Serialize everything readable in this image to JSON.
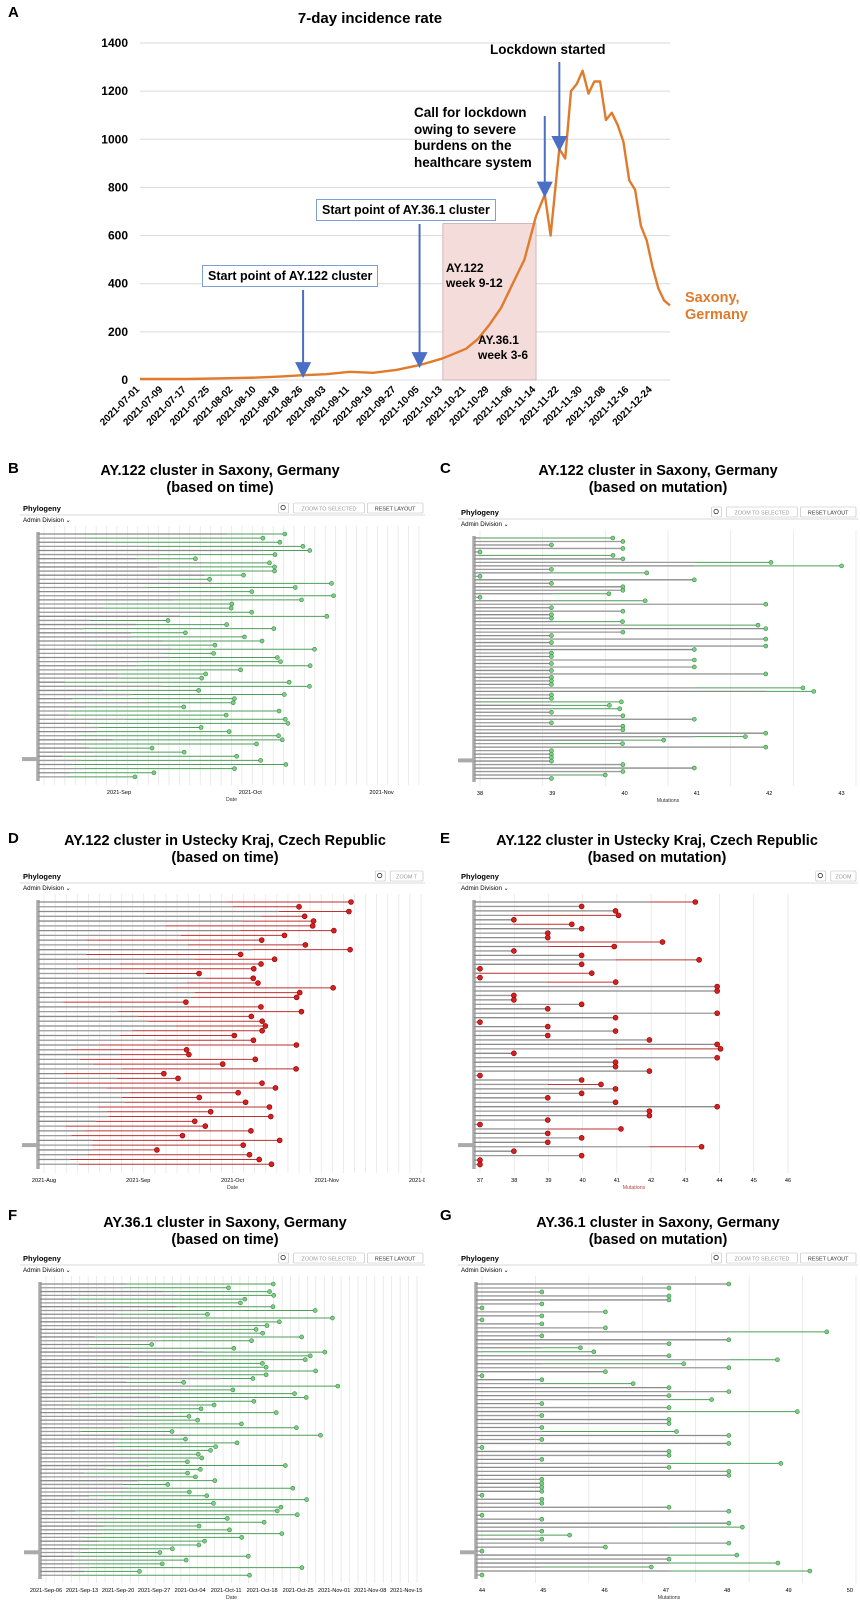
{
  "panel_a": {
    "letter": "A",
    "chart_data": {
      "type": "line",
      "title": "7-day incidence rate",
      "ylim": [
        0,
        1400
      ],
      "yticks": [
        0,
        200,
        400,
        600,
        800,
        1000,
        1200,
        1400
      ],
      "xtick_labels": [
        "2021-07-01",
        "2021-07-09",
        "2021-07-17",
        "2021-07-25",
        "2021-08-02",
        "2021-08-10",
        "2021-08-18",
        "2021-08-26",
        "2021-09-03",
        "2021-09-11",
        "2021-09-19",
        "2021-09-27",
        "2021-10-05",
        "2021-10-13",
        "2021-10-21",
        "2021-10-29",
        "2021-11-06",
        "2021-11-14",
        "2021-11-22",
        "2021-11-30",
        "2021-12-08",
        "2021-12-16",
        "2021-12-24"
      ],
      "grid": true,
      "series": [
        {
          "name": "Saxony, Germany",
          "color": "#e07b2c",
          "points": [
            [
              "2021-07-01",
              4
            ],
            [
              "2021-07-09",
              4
            ],
            [
              "2021-07-17",
              4
            ],
            [
              "2021-07-25",
              6
            ],
            [
              "2021-08-02",
              8
            ],
            [
              "2021-08-10",
              10
            ],
            [
              "2021-08-18",
              14
            ],
            [
              "2021-08-26",
              20
            ],
            [
              "2021-09-03",
              24
            ],
            [
              "2021-09-11",
              34
            ],
            [
              "2021-09-19",
              30
            ],
            [
              "2021-09-27",
              42
            ],
            [
              "2021-10-05",
              62
            ],
            [
              "2021-10-13",
              90
            ],
            [
              "2021-10-21",
              130
            ],
            [
              "2021-10-25",
              170
            ],
            [
              "2021-10-29",
              230
            ],
            [
              "2021-11-02",
              300
            ],
            [
              "2021-11-06",
              400
            ],
            [
              "2021-11-10",
              500
            ],
            [
              "2021-11-14",
              680
            ],
            [
              "2021-11-17",
              770
            ],
            [
              "2021-11-19",
              600
            ],
            [
              "2021-11-22",
              960
            ],
            [
              "2021-11-24",
              920
            ],
            [
              "2021-11-26",
              1200
            ],
            [
              "2021-11-28",
              1230
            ],
            [
              "2021-11-30",
              1285
            ],
            [
              "2021-12-02",
              1190
            ],
            [
              "2021-12-04",
              1240
            ],
            [
              "2021-12-06",
              1240
            ],
            [
              "2021-12-08",
              1080
            ],
            [
              "2021-12-10",
              1110
            ],
            [
              "2021-12-12",
              1060
            ],
            [
              "2021-12-14",
              990
            ],
            [
              "2021-12-16",
              830
            ],
            [
              "2021-12-18",
              790
            ],
            [
              "2021-12-20",
              640
            ],
            [
              "2021-12-22",
              580
            ],
            [
              "2021-12-24",
              470
            ],
            [
              "2021-12-26",
              380
            ],
            [
              "2021-12-28",
              330
            ],
            [
              "2021-12-30",
              310
            ]
          ]
        }
      ],
      "shaded_region": {
        "from": "2021-10-13",
        "to": "2021-11-14",
        "ymax": 650,
        "color": "#f4dcdb"
      },
      "annotations": {
        "ay122_start": {
          "label": "Start point of AY.122 cluster",
          "date": "2021-08-26"
        },
        "ay361_start": {
          "label": "Start point of AY.36.1 cluster",
          "date": "2021-10-05"
        },
        "call_lockdown": {
          "lines": [
            "Call for lockdown",
            "owing to severe",
            "burdens on the",
            "healthcare system"
          ],
          "date": "2021-11-17"
        },
        "lockdown": {
          "label": "Lockdown started",
          "date": "2021-11-22"
        },
        "region_ay122": [
          "AY.122",
          "week 9-12"
        ],
        "region_ay361": [
          "AY.36.1",
          "week 3-6"
        ]
      },
      "series_label": [
        "Saxony,",
        "Germany"
      ]
    }
  },
  "panels": [
    {
      "letter": "B",
      "title1": "AY.122 cluster in Saxony, Germany",
      "title2": "(based on time)",
      "header": "Phylogeny",
      "filter": "Admin Division",
      "tools": [
        "ZOOM TO SELECTED",
        "RESET LAYOUT"
      ],
      "xlabel": "Date",
      "ticks": [
        "2021-Sep",
        "2021-Oct",
        "2021-Nov"
      ],
      "tip_color": "#7ccf84"
    },
    {
      "letter": "C",
      "title1": "AY.122 cluster in Saxony, Germany",
      "title2": "(based on mutation)",
      "header": "Phylogeny",
      "filter": "Admin Division",
      "tools": [
        "ZOOM TO SELECTED",
        "RESET LAYOUT"
      ],
      "xlabel": "Mutations",
      "ticks": [
        "38",
        "39",
        "40",
        "41",
        "42",
        "43"
      ],
      "tip_color": "#7ccf84"
    },
    {
      "letter": "D",
      "title1": "AY.122 cluster in Ustecky Kraj, Czech Republic",
      "title2": "(based on time)",
      "header": "Phylogeny",
      "filter": "Admin Division",
      "tools": [
        "ZOOM T"
      ],
      "xlabel": "Date",
      "ticks": [
        "2021-Aug",
        "2021-Sep",
        "2021-Oct",
        "2021-Nov",
        "2021-Dec"
      ],
      "tip_color": "#d62020"
    },
    {
      "letter": "E",
      "title1": "AY.122 cluster in Ustecky Kraj, Czech Republic",
      "title2": "(based on mutation)",
      "header": "Phylogeny",
      "filter": "Admin Division",
      "tools": [
        "ZOOM"
      ],
      "xlabel": "Mutations",
      "ticks": [
        "37",
        "38",
        "39",
        "40",
        "41",
        "42",
        "43",
        "44",
        "45",
        "46"
      ],
      "tip_color": "#d62020"
    },
    {
      "letter": "F",
      "title1": "AY.36.1 cluster in Saxony, Germany",
      "title2": "(based on time)",
      "header": "Phylogeny",
      "filter": "Admin Division",
      "tools": [
        "ZOOM TO SELECTED",
        "RESET LAYOUT"
      ],
      "xlabel": "Date",
      "ticks": [
        "2021-Sep-06",
        "2021-Sep-13",
        "2021-Sep-20",
        "2021-Sep-27",
        "2021-Oct-04",
        "2021-Oct-11",
        "2021-Oct-18",
        "2021-Oct-25",
        "2021-Nov-01",
        "2021-Nov-08",
        "2021-Nov-15"
      ],
      "tip_color": "#7ccf84"
    },
    {
      "letter": "G",
      "title1": "AY.36.1 cluster in Saxony, Germany",
      "title2": "(based on mutation)",
      "header": "Phylogeny",
      "filter": "Admin Division",
      "tools": [
        "ZOOM TO SELECTED",
        "RESET LAYOUT"
      ],
      "xlabel": "Mutations",
      "ticks": [
        "44",
        "45",
        "46",
        "47",
        "48",
        "49",
        "50"
      ],
      "tip_color": "#7ccf84"
    }
  ]
}
